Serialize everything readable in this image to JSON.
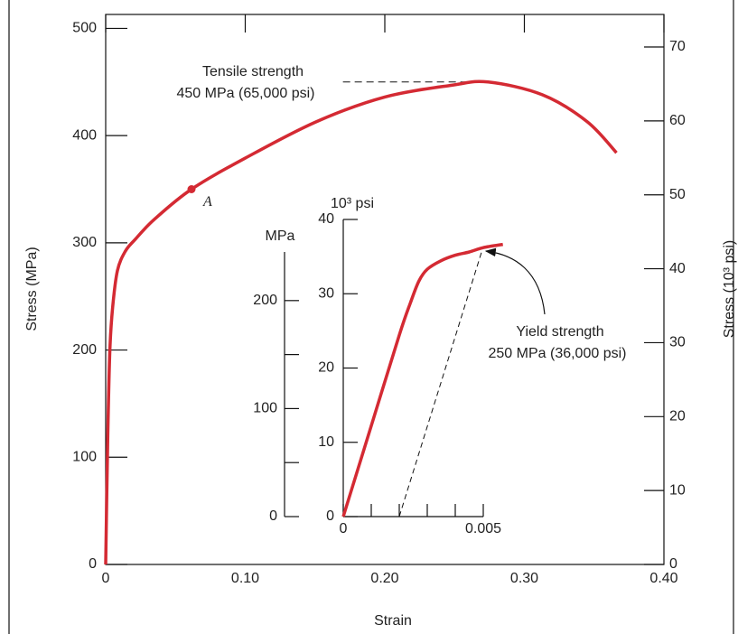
{
  "chart_data": [
    {
      "type": "line",
      "xlabel": "Strain",
      "ylabel": "Stress (MPa)",
      "y2label": "Stress (10³ psi)",
      "color": "#d42a33",
      "x": [
        0,
        0.0015,
        0.003,
        0.005,
        0.0084,
        0.014,
        0.021,
        0.035,
        0.0615,
        0.1,
        0.151,
        0.2,
        0.248,
        0.274,
        0.313,
        0.345,
        0.366
      ],
      "values": [
        0,
        120,
        200,
        240,
        274,
        292,
        303,
        322,
        350,
        379,
        413,
        436,
        447,
        450,
        438,
        413,
        384
      ],
      "xlim": [
        0,
        0.4
      ],
      "xticks": [
        0,
        {
          "value": 0.1,
          "label": "0.10"
        },
        {
          "value": 0.2,
          "label": "0.20"
        },
        {
          "value": 0.3,
          "label": "0.30"
        },
        {
          "value": 0.4,
          "label": "0.40"
        }
      ],
      "ylim": [
        0,
        513
      ],
      "yticks": [
        0,
        100,
        200,
        300,
        400,
        500
      ],
      "y2lim": [
        0,
        74.4
      ],
      "y2ticks": [
        0,
        10,
        20,
        30,
        40,
        50,
        60,
        70
      ],
      "point": {
        "label": "A",
        "x": 0.0615,
        "y": 350
      },
      "tensile": {
        "lines": [
          "Tensile strength",
          "450 MPa (65,000 psi)"
        ],
        "x": [
          0.17,
          0.274
        ],
        "y": 450
      }
    },
    {
      "type": "line",
      "ylabel": "MPa",
      "y2label": "10³ psi",
      "color": "#d42a33",
      "x": [
        0,
        0.001,
        0.002,
        0.0024,
        0.0027,
        0.003,
        0.0035,
        0.004,
        0.0045,
        0.005,
        0.0057
      ],
      "values": [
        0,
        84,
        168,
        198,
        218,
        229,
        237,
        242,
        245,
        249,
        252
      ],
      "xlim": [
        0,
        0.005
      ],
      "xticks": [
        0,
        0.005
      ],
      "xminor": [
        0.001,
        0.002,
        0.003,
        0.004
      ],
      "ylim": [
        0,
        245
      ],
      "yticks": [
        0,
        100,
        200
      ],
      "yminor": [
        50,
        150
      ],
      "y2lim": [
        0,
        40
      ],
      "y2ticks": [
        0,
        10,
        20,
        30,
        40
      ],
      "yield": {
        "lines": [
          "Yield strength",
          "250 MPa (36,000 psi)"
        ],
        "x": [
          0.002,
          0.005
        ],
        "y": [
          0,
          250
        ]
      }
    }
  ]
}
